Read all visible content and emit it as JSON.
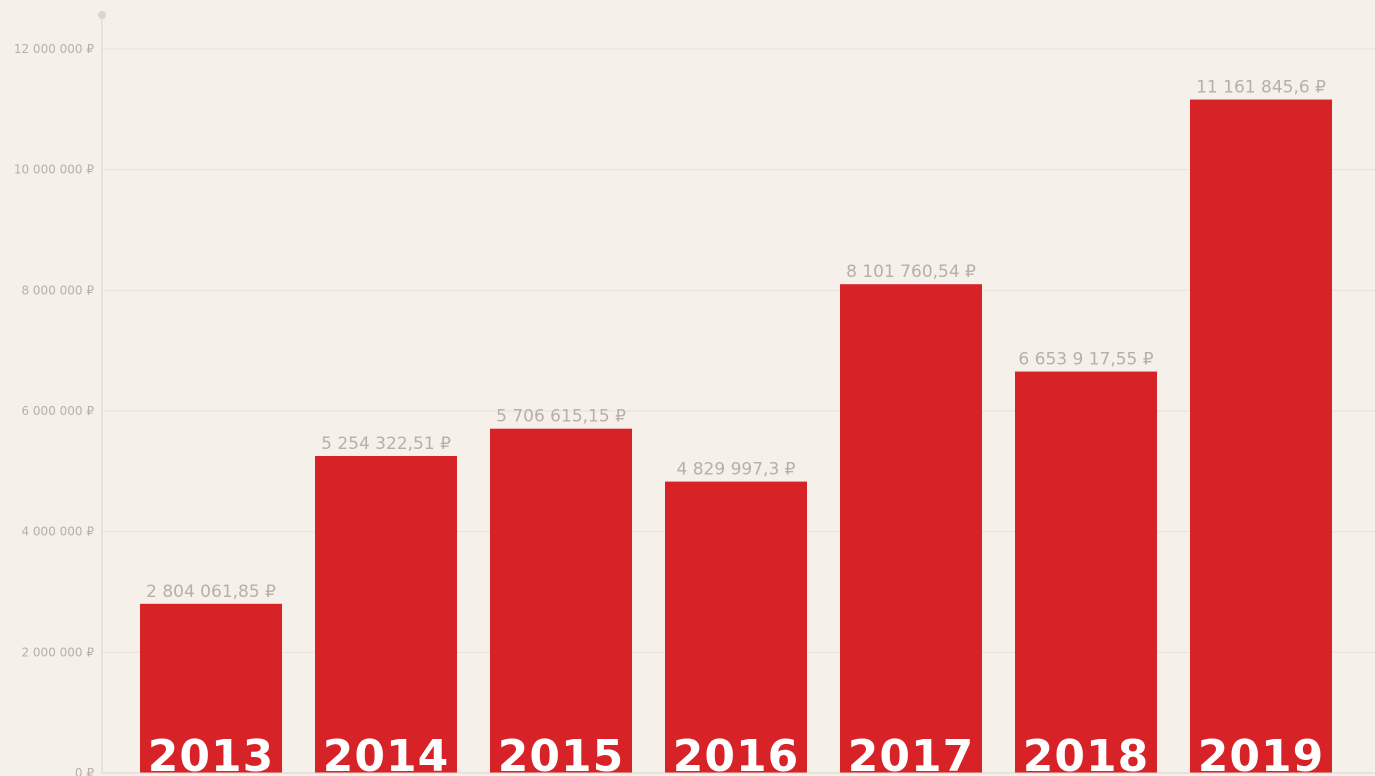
{
  "colors": {
    "background": "#f5f0ea",
    "bar": "#d72227",
    "grid": "#e8e1d9",
    "axis": "#ddd5cc",
    "tick_text": "#b8b0a8",
    "data_label": "#b8afa6",
    "category_text": "#ffffff"
  },
  "chart_data": {
    "type": "bar",
    "categories": [
      "2013",
      "2014",
      "2015",
      "2016",
      "2017",
      "2018",
      "2019"
    ],
    "values": [
      2804061.85,
      5254322.51,
      5706615.15,
      4829997.3,
      8101760.54,
      6653917.55,
      11161845.6
    ],
    "data_labels": [
      "2 804 061,85 ₽",
      "5 254 322,51 ₽",
      "5 706 615,15 ₽",
      "4 829 997,3 ₽",
      "8 101 760,54 ₽",
      "6 653 9 17,55 ₽",
      "11 161 845,6 ₽"
    ],
    "ylim": [
      0,
      12000000
    ],
    "yticks": [
      0,
      2000000,
      4000000,
      6000000,
      8000000,
      10000000,
      12000000
    ],
    "ytick_labels": [
      "0 ₽",
      "2 000 000 ₽",
      "4 000 000 ₽",
      "6 000 000 ₽",
      "8 000 000 ₽",
      "10 000 000 ₽",
      "12 000 000 ₽"
    ],
    "grid": true,
    "legend": "none",
    "title": "",
    "xlabel": "",
    "ylabel": ""
  }
}
